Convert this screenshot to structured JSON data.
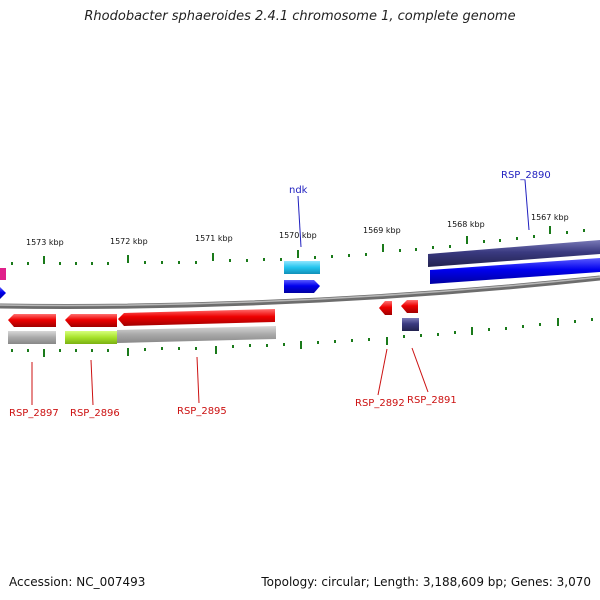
{
  "title": "Rhodobacter sphaeroides 2.4.1 chromosome 1, complete genome",
  "footer": {
    "accession": "Accession: NC_007493",
    "stats": "Topology: circular; Length: 3,188,609 bp; Genes: 3,070"
  },
  "scale_labels": [
    "1573 kbp",
    "1572 kbp",
    "1571 kbp",
    "1570 kbp",
    "1569 kbp",
    "1568 kbp",
    "1567 kbp"
  ],
  "gene_labels": [
    {
      "name": "ndk",
      "color": "#1f1fbf"
    },
    {
      "name": "RSP_2890",
      "color": "#1f1fbf"
    },
    {
      "name": "RSP_2897",
      "color": "#cc1111"
    },
    {
      "name": "RSP_2896",
      "color": "#cc1111"
    },
    {
      "name": "RSP_2895",
      "color": "#cc1111"
    },
    {
      "name": "RSP_2892",
      "color": "#cc1111"
    },
    {
      "name": "RSP_2891",
      "color": "#cc1111"
    }
  ],
  "colors": {
    "backbone": "#7a7a7a",
    "tick": "#1a7a1a",
    "forward_gene": "#0000ee",
    "forward_cds": "#3a3a80",
    "reverse_gene": "#ee0000",
    "reverse_cds": "#a9a9a9",
    "rna_cyan": "#22c4ee",
    "lime_cds": "#a6e22a",
    "magenta": "#e0208a"
  }
}
